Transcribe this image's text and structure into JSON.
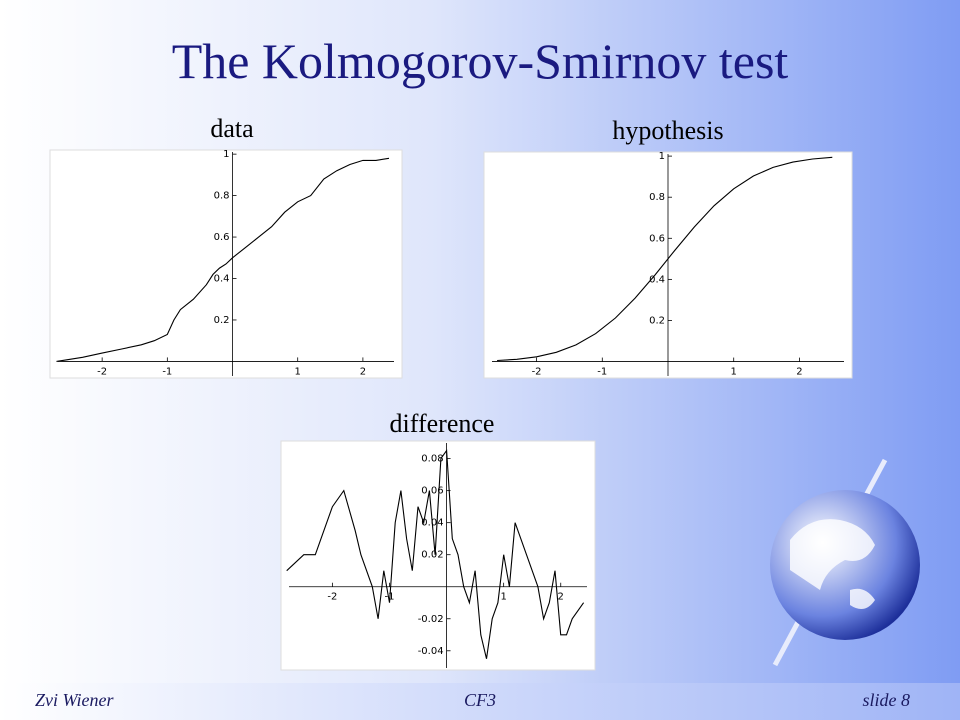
{
  "title": "The Kolmogorov-Smirnov test",
  "footer": {
    "author": "Zvi Wiener",
    "course": "CF3",
    "slide": "slide 8"
  },
  "chart_data": [
    {
      "type": "line",
      "title": "data",
      "color": "#000000",
      "x": [
        -2.7,
        -2.3,
        -2.0,
        -1.7,
        -1.4,
        -1.2,
        -1.0,
        -0.9,
        -0.8,
        -0.6,
        -0.4,
        -0.3,
        -0.2,
        -0.1,
        0,
        0.2,
        0.4,
        0.6,
        0.8,
        1.0,
        1.2,
        1.4,
        1.6,
        1.8,
        2.0,
        2.2,
        2.4
      ],
      "values": [
        0.0,
        0.02,
        0.04,
        0.06,
        0.08,
        0.1,
        0.13,
        0.2,
        0.25,
        0.3,
        0.37,
        0.42,
        0.45,
        0.47,
        0.5,
        0.55,
        0.6,
        0.65,
        0.72,
        0.77,
        0.8,
        0.88,
        0.92,
        0.95,
        0.97,
        0.97,
        0.98
      ],
      "xlim": [
        -2.8,
        2.6
      ],
      "ylim": [
        -0.08,
        1.02
      ],
      "xticks": [
        -2,
        -1,
        1,
        2
      ],
      "yticks": [
        0.2,
        0.4,
        0.6,
        0.8,
        1
      ]
    },
    {
      "type": "line",
      "title": "hypothesis",
      "color": "#000000",
      "x": [
        -2.6,
        -2.3,
        -2.0,
        -1.7,
        -1.4,
        -1.1,
        -0.8,
        -0.5,
        -0.2,
        0.1,
        0.4,
        0.7,
        1.0,
        1.3,
        1.6,
        1.9,
        2.2,
        2.5
      ],
      "values": [
        0.005,
        0.011,
        0.023,
        0.045,
        0.081,
        0.136,
        0.212,
        0.309,
        0.421,
        0.54,
        0.655,
        0.758,
        0.841,
        0.903,
        0.945,
        0.971,
        0.986,
        0.994
      ],
      "xlim": [
        -2.8,
        2.8
      ],
      "ylim": [
        -0.08,
        1.02
      ],
      "xticks": [
        -2,
        -1,
        1,
        2
      ],
      "yticks": [
        0.2,
        0.4,
        0.6,
        0.8,
        1
      ]
    },
    {
      "type": "line",
      "title": "difference",
      "color": "#000000",
      "x": [
        -2.8,
        -2.5,
        -2.3,
        -2.1,
        -2.0,
        -1.8,
        -1.6,
        -1.5,
        -1.3,
        -1.2,
        -1.1,
        -1.0,
        -0.9,
        -0.8,
        -0.7,
        -0.6,
        -0.5,
        -0.4,
        -0.3,
        -0.2,
        -0.1,
        0,
        0.1,
        0.2,
        0.3,
        0.4,
        0.5,
        0.6,
        0.7,
        0.8,
        0.9,
        1.0,
        1.1,
        1.2,
        1.3,
        1.4,
        1.5,
        1.6,
        1.7,
        1.8,
        1.9,
        2.0,
        2.1,
        2.2,
        2.4
      ],
      "values": [
        0.01,
        0.02,
        0.02,
        0.04,
        0.05,
        0.06,
        0.035,
        0.02,
        0.0,
        -0.02,
        0.01,
        -0.01,
        0.04,
        0.06,
        0.03,
        0.01,
        0.05,
        0.04,
        0.06,
        0.02,
        0.08,
        0.085,
        0.03,
        0.02,
        0.0,
        -0.01,
        0.01,
        -0.03,
        -0.045,
        -0.02,
        -0.01,
        0.02,
        0.0,
        0.04,
        0.03,
        0.02,
        0.01,
        0.0,
        -0.02,
        -0.01,
        0.01,
        -0.03,
        -0.03,
        -0.02,
        -0.01
      ],
      "xlim": [
        -2.9,
        2.6
      ],
      "ylim": [
        -0.052,
        0.091
      ],
      "xticks": [
        -2,
        -1,
        1,
        2
      ],
      "yticks": [
        -0.04,
        -0.02,
        0.02,
        0.04,
        0.06,
        0.08
      ]
    }
  ]
}
